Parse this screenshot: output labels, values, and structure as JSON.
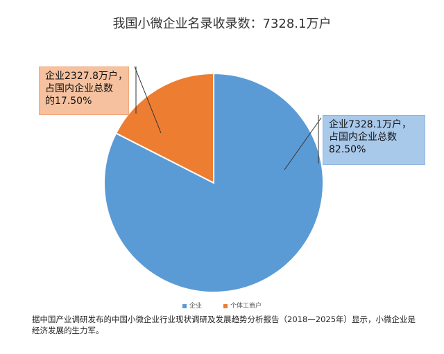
{
  "chart_data": {
    "type": "pie",
    "title": "我国小微企业名录收录数：7328.1万户",
    "slices": [
      {
        "label": "企业",
        "value": 82.5,
        "color": "#5b9bd5",
        "callout_lines": [
          "企业7328.1万户，",
          "占国内企业总数",
          "82.50%"
        ]
      },
      {
        "label": "个体工商户",
        "value": 17.5,
        "color": "#ed7d31",
        "callout_lines": [
          "企业2327.8万户，",
          "占国内企业总数",
          "的17.50%"
        ]
      }
    ],
    "legend_position": "bottom"
  },
  "caption": "据中国产业调研发布的中国小微企业行业现状调研及发展趋势分析报告（2018—2025年）显示，小微企业是经济发展的生力军。"
}
